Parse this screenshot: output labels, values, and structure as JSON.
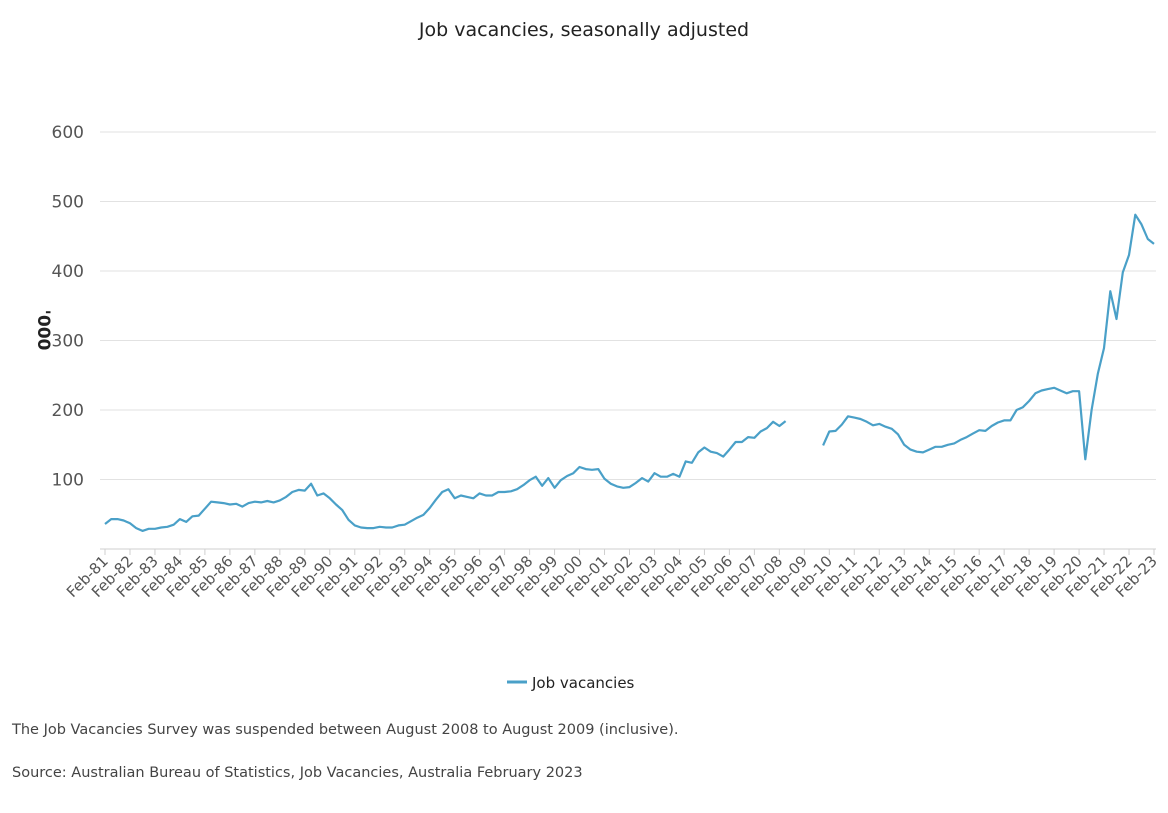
{
  "chart_data": {
    "type": "line",
    "title": "Job vacancies, seasonally adjusted",
    "ylabel": "'000",
    "xlabel": "",
    "ylim": [
      0,
      600
    ],
    "yticks": [
      100,
      200,
      300,
      400,
      500,
      600
    ],
    "categories": [
      "Feb-81",
      "Feb-82",
      "Feb-83",
      "Feb-84",
      "Feb-85",
      "Feb-86",
      "Feb-87",
      "Feb-88",
      "Feb-89",
      "Feb-90",
      "Feb-91",
      "Feb-92",
      "Feb-93",
      "Feb-94",
      "Feb-95",
      "Feb-96",
      "Feb-97",
      "Feb-98",
      "Feb-99",
      "Feb-00",
      "Feb-01",
      "Feb-02",
      "Feb-03",
      "Feb-04",
      "Feb-05",
      "Feb-06",
      "Feb-07",
      "Feb-08",
      "Feb-09",
      "Feb-10",
      "Feb-11",
      "Feb-12",
      "Feb-13",
      "Feb-14",
      "Feb-15",
      "Feb-16",
      "Feb-17",
      "Feb-18",
      "Feb-19",
      "Feb-20",
      "Feb-21",
      "Feb-22",
      "Feb-23"
    ],
    "legend_position": "bottom",
    "grid": true,
    "series": [
      {
        "name": "Job vacancies",
        "color": "#4aa0c8",
        "x": [
          1981.1,
          1981.35,
          1981.6,
          1981.85,
          1982.1,
          1982.35,
          1982.6,
          1982.85,
          1983.1,
          1983.35,
          1983.6,
          1983.85,
          1984.1,
          1984.35,
          1984.6,
          1984.85,
          1985.1,
          1985.35,
          1985.6,
          1985.85,
          1986.1,
          1986.35,
          1986.6,
          1986.85,
          1987.1,
          1987.35,
          1987.6,
          1987.85,
          1988.1,
          1988.35,
          1988.6,
          1988.85,
          1989.1,
          1989.35,
          1989.6,
          1989.85,
          1990.1,
          1990.35,
          1990.6,
          1990.85,
          1991.1,
          1991.35,
          1991.6,
          1991.85,
          1992.1,
          1992.35,
          1992.6,
          1992.85,
          1993.1,
          1993.35,
          1993.6,
          1993.85,
          1994.1,
          1994.35,
          1994.6,
          1994.85,
          1995.1,
          1995.35,
          1995.6,
          1995.85,
          1996.1,
          1996.35,
          1996.6,
          1996.85,
          1997.1,
          1997.35,
          1997.6,
          1997.85,
          1998.1,
          1998.35,
          1998.6,
          1998.85,
          1999.1,
          1999.35,
          1999.6,
          1999.85,
          2000.1,
          2000.35,
          2000.6,
          2000.85,
          2001.1,
          2001.35,
          2001.6,
          2001.85,
          2002.1,
          2002.35,
          2002.6,
          2002.85,
          2003.1,
          2003.35,
          2003.6,
          2003.85,
          2004.1,
          2004.35,
          2004.6,
          2004.85,
          2005.1,
          2005.35,
          2005.6,
          2005.85,
          2006.1,
          2006.35,
          2006.6,
          2006.85,
          2007.1,
          2007.35,
          2007.6,
          2007.85,
          2008.1,
          2008.35
        ],
        "values": [
          36,
          43,
          43,
          41,
          37,
          30,
          26,
          29,
          29,
          31,
          32,
          35,
          43,
          39,
          47,
          48,
          58,
          68,
          67,
          66,
          64,
          65,
          61,
          66,
          68,
          67,
          69,
          67,
          70,
          75,
          82,
          85,
          84,
          94,
          77,
          80,
          73,
          64,
          56,
          42,
          34,
          31,
          30,
          30,
          32,
          31,
          31,
          34,
          35,
          40,
          45,
          49,
          59,
          71,
          82,
          86,
          73,
          77,
          75,
          73,
          80,
          77,
          77,
          82,
          82,
          83,
          86,
          92,
          99,
          104,
          91,
          102,
          88,
          99,
          105,
          109,
          118,
          115,
          114,
          115,
          101,
          94,
          90,
          88,
          89,
          95,
          102,
          97,
          109,
          104,
          104,
          108,
          104,
          126,
          124,
          139,
          146,
          140,
          138,
          133,
          143,
          154,
          154,
          161,
          160,
          169,
          174,
          183,
          177,
          184
        ]
      },
      {
        "name": "",
        "color": "#4aa0c8",
        "x": [
          2009.85,
          2010.1,
          2010.35,
          2010.6,
          2010.85,
          2011.1,
          2011.35,
          2011.6,
          2011.85,
          2012.1,
          2012.35,
          2012.6,
          2012.85,
          2013.1,
          2013.35,
          2013.6,
          2013.85,
          2014.1,
          2014.35,
          2014.6,
          2014.85,
          2015.1,
          2015.35,
          2015.6,
          2015.85,
          2016.1,
          2016.35,
          2016.6,
          2016.85,
          2017.1,
          2017.35,
          2017.6,
          2017.85,
          2018.1,
          2018.35,
          2018.6,
          2018.85,
          2019.1,
          2019.35,
          2019.6,
          2019.85,
          2020.1,
          2020.35,
          2020.6,
          2020.85,
          2021.1,
          2021.35,
          2021.6,
          2021.85,
          2022.1,
          2022.35,
          2022.6,
          2022.85,
          2023.1
        ],
        "values": [
          149,
          169,
          170,
          179,
          191,
          189,
          187,
          183,
          178,
          180,
          176,
          173,
          165,
          150,
          143,
          140,
          139,
          143,
          147,
          147,
          150,
          152,
          157,
          161,
          166,
          171,
          170,
          177,
          182,
          185,
          185,
          200,
          204,
          213,
          224,
          228,
          230,
          232,
          228,
          224,
          227,
          227,
          129,
          200,
          252,
          289,
          371,
          331,
          398,
          423,
          481,
          467,
          446,
          439
        ]
      }
    ]
  },
  "notes": {
    "suspension": "The Job Vacancies Survey was suspended between August 2008 to August 2009 (inclusive).",
    "source": "Source: Australian Bureau of Statistics, Job Vacancies, Australia February 2023"
  }
}
